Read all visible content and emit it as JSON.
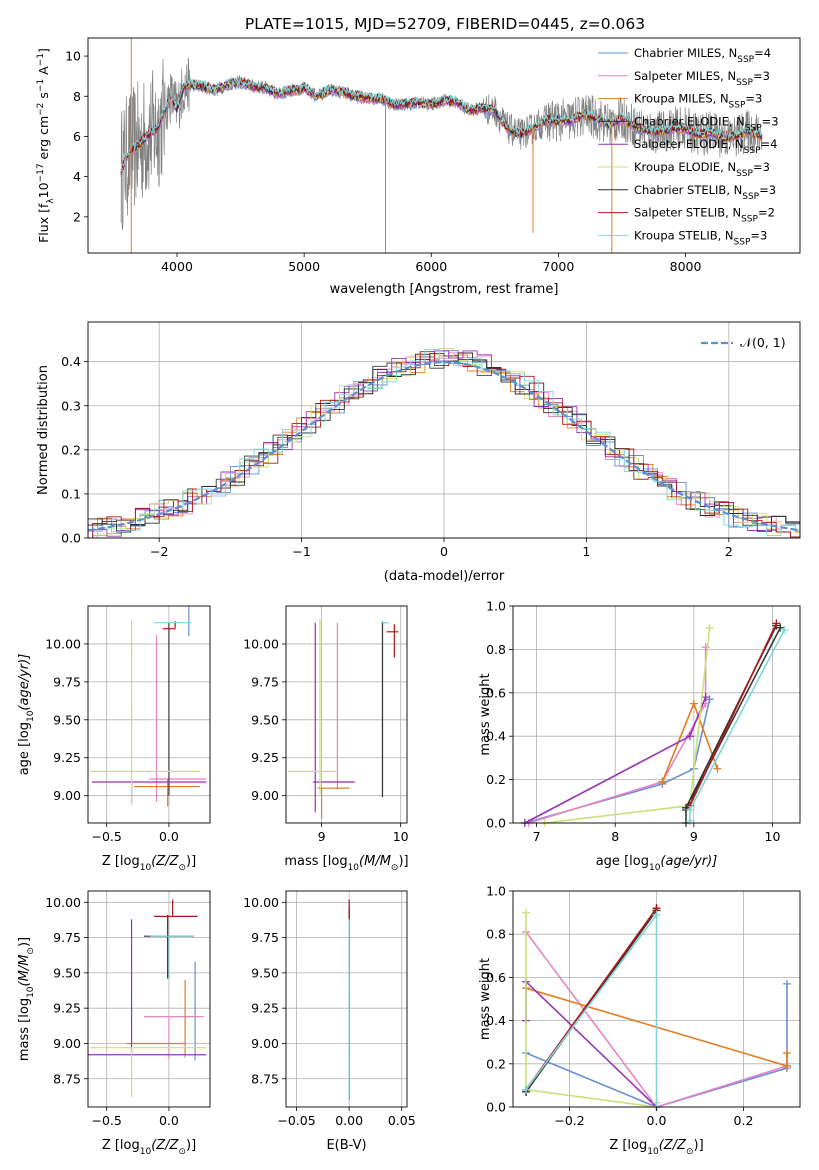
{
  "figure_title": "PLATE=1015, MJD=52709, FIBERID=0445, z=0.063",
  "colors": {
    "data": "#808080",
    "models": [
      "#6a8fd8",
      "#e884c4",
      "#e07d22",
      "#3a3a3a",
      "#9a32b8",
      "#c9e07a",
      "#2f2f2f",
      "#b01818",
      "#7fd6d8"
    ],
    "normal": "#5b8fd6"
  },
  "models": [
    {
      "label": "Chabrier MILES, N",
      "n": "4"
    },
    {
      "label": "Salpeter MILES, N",
      "n": "3"
    },
    {
      "label": "Kroupa MILES, N",
      "n": "3"
    },
    {
      "label": "Chabrier ELODIE, N",
      "n": "3"
    },
    {
      "label": "Salpeter ELODIE, N",
      "n": "4"
    },
    {
      "label": "Kroupa ELODIE, N",
      "n": "3"
    },
    {
      "label": "Chabrier STELIB, N",
      "n": "3"
    },
    {
      "label": "Salpeter STELIB, N",
      "n": "2"
    },
    {
      "label": "Kroupa STELIB, N",
      "n": "3"
    }
  ],
  "legend_sub": "SSP",
  "chart_data": [
    {
      "id": "spectrum",
      "type": "line",
      "xlabel": "wavelength [Angstrom, rest frame]",
      "ylabel": "Flux [f",
      "ylabel_parts": {
        "sub": "λ",
        "main": "10",
        "sup1": "−17",
        "unit": " erg cm",
        "sup2": "−2",
        "s": " s",
        "sup3": "−1",
        "A": " A",
        "sup4": "−1",
        "end": "]"
      },
      "xlim": [
        3300,
        8900
      ],
      "ylim": [
        0.2,
        10.9
      ],
      "xticks": [
        4000,
        5000,
        6000,
        7000,
        8000
      ],
      "yticks": [
        2,
        4,
        6,
        8,
        10
      ],
      "grid": false,
      "legend": "top-right",
      "continuum_x": [
        3560,
        3620,
        3700,
        3780,
        3850,
        3900,
        3950,
        4000,
        4050,
        4100,
        4200,
        4300,
        4400,
        4500,
        4600,
        4700,
        4800,
        4900,
        5000,
        5100,
        5200,
        5300,
        5400,
        5500,
        5600,
        5700,
        5800,
        5900,
        6000,
        6100,
        6200,
        6300,
        6400,
        6500,
        6600,
        6700,
        6800,
        6900,
        7000,
        7100,
        7200,
        7300,
        7400,
        7500,
        7600,
        7700,
        7800,
        7900,
        8000,
        8100,
        8200,
        8300,
        8400,
        8500,
        8600
      ],
      "continuum_y": [
        4.3,
        5.2,
        5.6,
        6.1,
        6.4,
        7.3,
        8.0,
        7.4,
        8.4,
        8.6,
        8.5,
        8.3,
        8.6,
        8.7,
        8.5,
        8.4,
        8.1,
        8.3,
        8.4,
        8.0,
        8.3,
        8.2,
        8.0,
        7.9,
        7.9,
        7.6,
        7.6,
        7.7,
        7.6,
        7.8,
        7.7,
        7.3,
        7.4,
        7.3,
        6.4,
        6.1,
        6.4,
        6.8,
        6.8,
        6.8,
        7.1,
        6.9,
        6.6,
        6.9,
        6.5,
        6.3,
        6.2,
        6.4,
        6.4,
        6.1,
        6.2,
        6.0,
        6.0,
        6.3,
        6.0
      ]
    },
    {
      "id": "residuals",
      "type": "histogram",
      "xlabel": "(data-model)/error",
      "ylabel": "Normed distribution",
      "xlim": [
        -2.5,
        2.5
      ],
      "ylim": [
        0,
        0.49
      ],
      "xticks": [
        -2,
        -1,
        0,
        1,
        2
      ],
      "xtick_labels": [
        "−2",
        "−1",
        "0",
        "1",
        "2"
      ],
      "yticks": [
        0.0,
        0.1,
        0.2,
        0.3,
        0.4
      ],
      "ytick_labels": [
        "0.0",
        "0.1",
        "0.2",
        "0.3",
        "0.4"
      ],
      "grid": true,
      "legend": "top-right",
      "legend_label": "𝒩(0, 1)",
      "bin_width": 0.1
    },
    {
      "id": "age-vs-Z",
      "type": "scatter",
      "xlabel_parts": [
        "Z [log",
        "10",
        "(Z/Z",
        "⊙",
        ")]"
      ],
      "ylabel_parts": [
        "age  [log",
        "10",
        "(age/yr)]"
      ],
      "xlim": [
        -0.65,
        0.33
      ],
      "ylim": [
        8.82,
        10.25
      ],
      "xticks": [
        -0.5,
        0.0
      ],
      "xtick_labels": [
        "−0.5",
        "0.0"
      ],
      "yticks": [
        9.0,
        9.25,
        9.5,
        9.75,
        10.0
      ],
      "ytick_labels": [
        "9.00",
        "9.25",
        "9.50",
        "9.75",
        "10.00"
      ],
      "grid": true,
      "points": [
        {
          "m": 0,
          "x": 0.16,
          "y": 10.1,
          "xerr": [
            0,
            0
          ],
          "yerr": [
            0.05,
            1.15
          ]
        },
        {
          "m": 1,
          "x": -0.1,
          "y": 9.11,
          "xerr": [
            0.06,
            0.4
          ],
          "yerr": [
            0.15,
            0.95
          ]
        },
        {
          "m": 2,
          "x": -0.01,
          "y": 9.06,
          "xerr": [
            0.27,
            0.26
          ],
          "yerr": [
            0.13,
            0.05
          ]
        },
        {
          "m": 3,
          "x": 0.0,
          "y": 10.12,
          "xerr": [
            0.0,
            0.0
          ],
          "yerr": [
            1.12,
            0.02
          ]
        },
        {
          "m": 4,
          "x": -0.3,
          "y": 9.09,
          "xerr": [
            0.32,
            0.6
          ],
          "yerr": [
            0.14,
            0.0
          ]
        },
        {
          "m": 5,
          "x": -0.3,
          "y": 9.16,
          "xerr": [
            0.33,
            0.55
          ],
          "yerr": [
            0.22,
            1.0
          ]
        },
        {
          "m": 6,
          "x": -0.01,
          "y": 10.14,
          "xerr": [
            0.0,
            0.0
          ],
          "yerr": [
            0.0,
            0.0
          ]
        },
        {
          "m": 7,
          "x": 0.05,
          "y": 10.1,
          "xerr": [
            0.1,
            0.0
          ],
          "yerr": [
            0.0,
            0.05
          ]
        },
        {
          "m": 8,
          "x": 0.0,
          "y": 10.14,
          "xerr": [
            0.12,
            0.18
          ],
          "yerr": [
            0.0,
            0.0
          ]
        }
      ]
    },
    {
      "id": "age-vs-mass",
      "type": "scatter",
      "xlabel_parts": [
        "mass [log",
        "10",
        "(M/M",
        "⊙",
        ")]"
      ],
      "ylabel_parts": [],
      "xlim": [
        8.55,
        10.08
      ],
      "ylim": [
        8.82,
        10.25
      ],
      "xticks": [
        9,
        10
      ],
      "xtick_labels": [
        "9",
        "10"
      ],
      "yticks": [
        9.0,
        9.25,
        9.5,
        9.75,
        10.0
      ],
      "ytick_labels": [
        "9.00",
        "9.25",
        "9.50",
        "9.75",
        "10.00"
      ],
      "grid": true,
      "points": [
        {
          "m": 0,
          "x": 9.77,
          "y": 10.1,
          "xerr": [
            0.0,
            0.0
          ],
          "yerr": [
            1.1,
            0.05
          ]
        },
        {
          "m": 1,
          "x": 9.2,
          "y": 9.09,
          "xerr": [
            0.2,
            0.2
          ],
          "yerr": [
            0.05,
            1.05
          ]
        },
        {
          "m": 2,
          "x": 9.0,
          "y": 9.05,
          "xerr": [
            0.05,
            0.35
          ],
          "yerr": [
            0.2,
            0.0
          ]
        },
        {
          "m": 3,
          "x": 9.77,
          "y": 10.14,
          "xerr": [
            0.0,
            0.0
          ],
          "yerr": [
            1.15,
            0.0
          ]
        },
        {
          "m": 4,
          "x": 8.92,
          "y": 9.09,
          "xerr": [
            0.03,
            0.5
          ],
          "yerr": [
            0.2,
            1.05
          ]
        },
        {
          "m": 5,
          "x": 8.98,
          "y": 9.16,
          "xerr": [
            0.4,
            0.2
          ],
          "yerr": [
            0.15,
            1.0
          ]
        },
        {
          "m": 6,
          "x": 9.78,
          "y": 10.14,
          "xerr": [
            0.0,
            0.02
          ],
          "yerr": [
            0.0,
            0.0
          ]
        },
        {
          "m": 7,
          "x": 9.92,
          "y": 10.08,
          "xerr": [
            0.1,
            0.05
          ],
          "yerr": [
            0.17,
            0.05
          ]
        },
        {
          "m": 8,
          "x": 9.8,
          "y": 10.14,
          "xerr": [
            0.05,
            0.05
          ],
          "yerr": [
            0.0,
            0.0
          ]
        }
      ]
    },
    {
      "id": "weight-vs-age",
      "type": "line",
      "xlabel_parts": [
        "age  [log",
        "10",
        "(age/yr)]"
      ],
      "ylabel": "mass weight",
      "xlim": [
        6.7,
        10.35
      ],
      "ylim": [
        0,
        1.0
      ],
      "xticks": [
        7,
        8,
        9,
        10
      ],
      "xtick_labels": [
        "7",
        "8",
        "9",
        "10"
      ],
      "yticks": [
        0.0,
        0.2,
        0.4,
        0.6,
        0.8,
        1.0
      ],
      "ytick_labels": [
        "0.0",
        "0.2",
        "0.4",
        "0.6",
        "0.8",
        "1.0"
      ],
      "grid": true,
      "series": [
        {
          "m": 0,
          "x": [
            6.85,
            8.6,
            9.0,
            9.2
          ],
          "y": [
            0.0,
            0.18,
            0.25,
            0.57
          ]
        },
        {
          "m": 1,
          "x": 6.9,
          "x2": [
            6.9,
            8.6,
            9.15,
            9.15
          ],
          "y": [
            0.0,
            0.19,
            0.55,
            0.81
          ],
          "xs": [
            6.9,
            8.6,
            9.15,
            9.15
          ]
        },
        {
          "m": 2,
          "x": [
            8.6,
            9.0,
            9.3
          ],
          "y": [
            0.19,
            0.55,
            0.25
          ]
        },
        {
          "m": 3,
          "x": [
            8.9,
            8.9,
            10.1
          ],
          "y": [
            0.0,
            0.06,
            0.9
          ]
        },
        {
          "m": 4,
          "x": [
            6.85,
            8.95,
            9.15
          ],
          "y": [
            0.0,
            0.4,
            0.58
          ]
        },
        {
          "m": 5,
          "x": [
            7.1,
            8.95,
            9.2
          ],
          "y": [
            0.0,
            0.08,
            0.9
          ]
        },
        {
          "m": 6,
          "x": [
            8.9,
            10.05
          ],
          "y": [
            0.07,
            0.91
          ]
        },
        {
          "m": 7,
          "x": [
            8.95,
            10.05
          ],
          "y": [
            0.08,
            0.92
          ]
        },
        {
          "m": 8,
          "x": [
            8.95,
            8.95,
            10.15
          ],
          "y": [
            0.01,
            0.06,
            0.89
          ]
        }
      ]
    },
    {
      "id": "mass-vs-Z",
      "type": "scatter",
      "xlabel_parts": [
        "Z [log",
        "10",
        "(Z/Z",
        "⊙",
        ")]"
      ],
      "ylabel_parts": [
        "mass [log",
        "10",
        "(M/M",
        "⊙",
        ")]"
      ],
      "xlim": [
        -0.65,
        0.33
      ],
      "ylim": [
        8.55,
        10.08
      ],
      "xticks": [
        -0.5,
        0.0
      ],
      "xtick_labels": [
        "−0.5",
        "0.0"
      ],
      "yticks": [
        8.75,
        9.0,
        9.25,
        9.5,
        9.75,
        10.0
      ],
      "ytick_labels": [
        "8.75",
        "9.00",
        "9.25",
        "9.50",
        "9.75",
        "10.00"
      ],
      "grid": true,
      "points": [
        {
          "m": 0,
          "x": 0.21,
          "y": 8.98,
          "xerr": [
            0.0,
            0.0
          ],
          "yerr": [
            0.1,
            0.6
          ]
        },
        {
          "m": 1,
          "x": 0.0,
          "y": 9.19,
          "xerr": [
            0.2,
            0.28
          ],
          "yerr": [
            0.3,
            0.0
          ]
        },
        {
          "m": 2,
          "x": 0.13,
          "y": 9.0,
          "xerr": [
            0.47,
            0.0
          ],
          "yerr": [
            0.1,
            0.45
          ]
        },
        {
          "m": 3,
          "x": 0.0,
          "y": 9.76,
          "xerr": [
            0.2,
            0.2
          ],
          "yerr": [
            0.3,
            0.0
          ]
        },
        {
          "m": 4,
          "x": -0.3,
          "y": 8.92,
          "xerr": [
            0.35,
            0.6
          ],
          "yerr": [
            0.0,
            0.96
          ]
        },
        {
          "m": 5,
          "x": -0.3,
          "y": 8.97,
          "xerr": [
            0.33,
            0.6
          ],
          "yerr": [
            0.35,
            0.0
          ]
        },
        {
          "m": 6,
          "x": -0.01,
          "y": 9.76,
          "xerr": [
            0.0,
            0.0
          ],
          "yerr": [
            0.3,
            0.15
          ]
        },
        {
          "m": 7,
          "x": 0.03,
          "y": 9.9,
          "xerr": [
            0.15,
            0.2
          ],
          "yerr": [
            0.0,
            0.12
          ]
        },
        {
          "m": 8,
          "x": 0.0,
          "y": 9.76,
          "xerr": [
            0.15,
            0.2
          ],
          "yerr": [
            0.3,
            0.0
          ]
        }
      ]
    },
    {
      "id": "mass-vs-ebv",
      "type": "scatter",
      "xlabel": "E(B-V)",
      "xlim": [
        -0.06,
        0.055
      ],
      "ylim": [
        8.55,
        10.08
      ],
      "xticks": [
        -0.05,
        0.0,
        0.05
      ],
      "xtick_labels": [
        "−0.05",
        "0.00",
        "0.05"
      ],
      "yticks": [
        8.75,
        9.0,
        9.25,
        9.5,
        9.75,
        10.0
      ],
      "ytick_labels": [
        "8.75",
        "9.00",
        "9.25",
        "9.50",
        "9.75",
        "10.00"
      ],
      "grid": true,
      "points": [
        {
          "m": 0,
          "x": 0.0,
          "y": 9.5,
          "yerr": [
            0.9,
            0.5
          ]
        },
        {
          "m": 1,
          "x": 0.0,
          "y": 9.5,
          "yerr": [
            0.9,
            0.4
          ]
        },
        {
          "m": 2,
          "x": 0.0,
          "y": 9.5,
          "yerr": [
            0.9,
            0.45
          ]
        },
        {
          "m": 3,
          "x": 0.0,
          "y": 9.5,
          "yerr": [
            0.9,
            0.45
          ]
        },
        {
          "m": 4,
          "x": 0.0,
          "y": 9.5,
          "yerr": [
            0.9,
            0.45
          ]
        },
        {
          "m": 5,
          "x": 0.0,
          "y": 9.5,
          "yerr": [
            0.9,
            0.4
          ]
        },
        {
          "m": 6,
          "x": 0.0,
          "y": 9.5,
          "yerr": [
            0.9,
            0.45
          ]
        },
        {
          "m": 7,
          "x": 0.0,
          "y": 9.5,
          "yerr": [
            0.05,
            0.52
          ]
        },
        {
          "m": 8,
          "x": 0.0,
          "y": 9.5,
          "yerr": [
            0.9,
            0.38
          ]
        }
      ]
    },
    {
      "id": "weight-vs-Z",
      "type": "line",
      "xlabel_parts": [
        "Z [log",
        "10",
        "(Z/Z",
        "⊙",
        ")]"
      ],
      "ylabel": "mass weight",
      "xlim": [
        -0.33,
        0.33
      ],
      "ylim": [
        0,
        1.0
      ],
      "xticks": [
        -0.2,
        0.0,
        0.2
      ],
      "xtick_labels": [
        "−0.2",
        "0.0",
        "0.2"
      ],
      "yticks": [
        0.0,
        0.2,
        0.4,
        0.6,
        0.8,
        1.0
      ],
      "ytick_labels": [
        "0.0",
        "0.2",
        "0.4",
        "0.6",
        "0.8",
        "1.0"
      ],
      "grid": true,
      "series": [
        {
          "m": 0,
          "x": [
            -0.3,
            0.0,
            0.3,
            0.3
          ],
          "y": [
            0.25,
            0.0,
            0.18,
            0.57
          ]
        },
        {
          "m": 1,
          "x": [
            -0.3,
            0.0,
            0.3
          ],
          "y": [
            0.81,
            0.0,
            0.19
          ]
        },
        {
          "m": 2,
          "x": [
            -0.3,
            0.3,
            0.3
          ],
          "y": [
            0.55,
            0.19,
            0.25
          ]
        },
        {
          "m": 3,
          "x": [
            -0.3,
            0.0
          ],
          "y": [
            0.07,
            0.91
          ]
        },
        {
          "m": 4,
          "x": [
            -0.3,
            -0.3,
            0.0
          ],
          "y": [
            0.4,
            0.58,
            0.0
          ]
        },
        {
          "m": 5,
          "x": [
            -0.3,
            -0.3,
            0.0,
            0.0
          ],
          "y": [
            0.9,
            0.08,
            0.0,
            0.02
          ]
        },
        {
          "m": 6,
          "x": [
            -0.3,
            0.0
          ],
          "y": [
            0.07,
            0.92
          ]
        },
        {
          "m": 7,
          "x": [
            -0.3,
            0.0
          ],
          "y": [
            0.08,
            0.92
          ]
        },
        {
          "m": 8,
          "x": [
            -0.3,
            0.0,
            0.0
          ],
          "y": [
            0.08,
            0.89,
            0.0
          ]
        }
      ]
    }
  ]
}
